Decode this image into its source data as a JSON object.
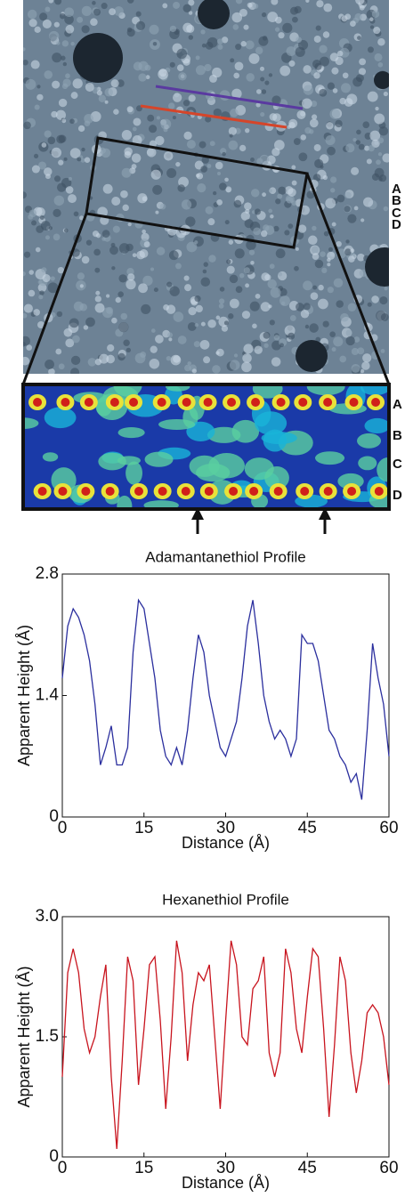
{
  "image_labels": {
    "rows": [
      "A",
      "B",
      "C",
      "D"
    ],
    "zoom_rows": [
      "A",
      "B",
      "C",
      "D"
    ]
  },
  "chart_data": [
    {
      "type": "line",
      "title": "Adamantanethiol Profile",
      "xlabel": "Distance (Å)",
      "ylabel": "Apparent Height (Å)",
      "x": [
        0,
        1,
        2,
        3,
        4,
        5,
        6,
        7,
        8,
        9,
        10,
        11,
        12,
        13,
        14,
        15,
        16,
        17,
        18,
        19,
        20,
        21,
        22,
        23,
        24,
        25,
        26,
        27,
        28,
        29,
        30,
        31,
        32,
        33,
        34,
        35,
        36,
        37,
        38,
        39,
        40,
        41,
        42,
        43,
        44,
        45,
        46,
        47,
        48,
        49,
        50,
        51,
        52,
        53,
        54,
        55,
        56,
        57,
        58,
        59,
        60
      ],
      "series": [
        {
          "color": "#2b2f9e",
          "values": [
            1.6,
            2.2,
            2.4,
            2.3,
            2.1,
            1.8,
            1.3,
            0.6,
            0.8,
            1.05,
            0.6,
            0.6,
            0.8,
            1.9,
            2.5,
            2.4,
            2.0,
            1.6,
            1.0,
            0.7,
            0.6,
            0.8,
            0.6,
            1.0,
            1.6,
            2.1,
            1.9,
            1.4,
            1.1,
            0.8,
            0.7,
            0.9,
            1.1,
            1.6,
            2.2,
            2.5,
            2.0,
            1.4,
            1.1,
            0.9,
            1.0,
            0.9,
            0.7,
            0.9,
            2.1,
            2.0,
            2.0,
            1.8,
            1.4,
            1.0,
            0.9,
            0.7,
            0.6,
            0.4,
            0.5,
            0.2,
            1.0,
            2.0,
            1.6,
            1.3,
            0.7
          ]
        }
      ],
      "xlim": [
        0,
        60
      ],
      "xticks": [
        0,
        15,
        30,
        45,
        60
      ],
      "ylim": [
        0,
        2.8
      ],
      "yticks": [
        0,
        1.4,
        2.8
      ]
    },
    {
      "type": "line",
      "title": "Hexanethiol Profile",
      "xlabel": "Distance (Å)",
      "ylabel": "Apparent Height (Å)",
      "x": [
        0,
        1,
        2,
        3,
        4,
        5,
        6,
        7,
        8,
        9,
        10,
        11,
        12,
        13,
        14,
        15,
        16,
        17,
        18,
        19,
        20,
        21,
        22,
        23,
        24,
        25,
        26,
        27,
        28,
        29,
        30,
        31,
        32,
        33,
        34,
        35,
        36,
        37,
        38,
        39,
        40,
        41,
        42,
        43,
        44,
        45,
        46,
        47,
        48,
        49,
        50,
        51,
        52,
        53,
        54,
        55,
        56,
        57,
        58,
        59,
        60
      ],
      "series": [
        {
          "color": "#c8141e",
          "values": [
            1.0,
            2.3,
            2.6,
            2.3,
            1.6,
            1.3,
            1.5,
            2.0,
            2.4,
            1.0,
            0.1,
            1.2,
            2.5,
            2.2,
            0.9,
            1.6,
            2.4,
            2.5,
            1.7,
            0.6,
            1.5,
            2.7,
            2.3,
            1.2,
            1.9,
            2.3,
            2.2,
            2.4,
            1.5,
            0.6,
            1.7,
            2.7,
            2.4,
            1.5,
            1.4,
            2.1,
            2.2,
            2.5,
            1.3,
            1.0,
            1.3,
            2.6,
            2.3,
            1.6,
            1.3,
            2.0,
            2.6,
            2.5,
            1.6,
            0.5,
            1.4,
            2.5,
            2.2,
            1.3,
            0.8,
            1.2,
            1.8,
            1.9,
            1.8,
            1.5,
            0.9
          ]
        }
      ],
      "xlim": [
        0,
        60
      ],
      "xticks": [
        0,
        15,
        30,
        45,
        60
      ],
      "ylim": [
        0,
        3
      ],
      "yticks": [
        0,
        1.5,
        {
          "value": 3,
          "label": "3.0"
        }
      ]
    }
  ]
}
